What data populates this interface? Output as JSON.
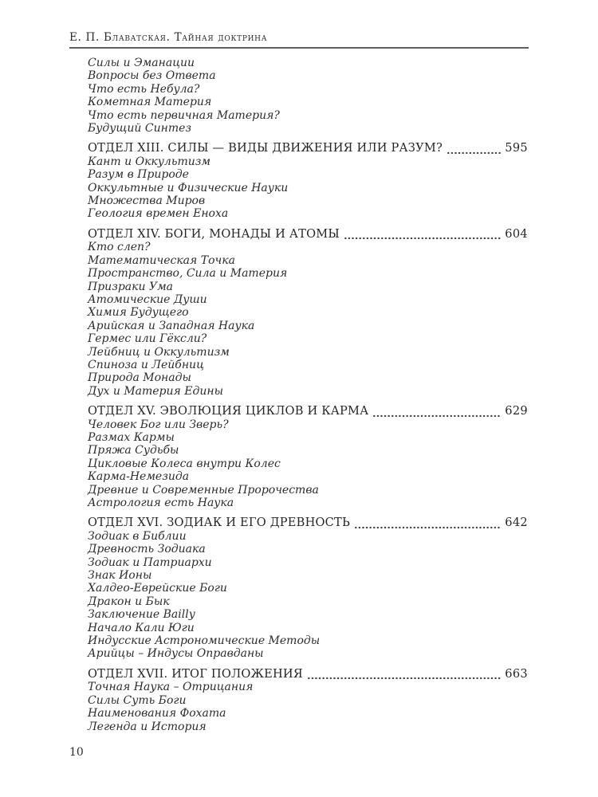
{
  "page": {
    "running_header": "Е. П. Блаватская. Тайная доктрина",
    "folio": "10"
  },
  "toc": {
    "leading_items": [
      "Силы и Эманации",
      "Вопросы без Ответа",
      "Что есть Небула?",
      "Кометная Материя",
      "Что есть первичная Материя?",
      "Будущий Синтез"
    ],
    "sections": [
      {
        "title": "ОТДЕЛ XIII. СИЛЫ — ВИДЫ ДВИЖЕНИЯ ИЛИ РАЗУМ?",
        "page": "595",
        "items": [
          "Кант и Оккультизм",
          "Разум в Природе",
          "Оккультные и Физические Науки",
          "Множества Миров",
          "Геология времен Еноха"
        ]
      },
      {
        "title": "ОТДЕЛ XIV. БОГИ, МОНАДЫ И АТОМЫ",
        "page": "604",
        "items": [
          "Кто слеп?",
          "Математическая Точка",
          "Пространство, Сила и Материя",
          "Призраки Ума",
          "Атомические Души",
          "Химия Будущего",
          "Арийская и Западная Наука",
          "Гермес или Гёксли?",
          "Лейбниц и Оккультизм",
          "Спиноза и Лейбниц",
          "Природа Монады",
          "Дух и Материя Едины"
        ]
      },
      {
        "title": "ОТДЕЛ XV. ЭВОЛЮЦИЯ ЦИКЛОВ И КАРМА",
        "page": "629",
        "items": [
          "Человек Бог или Зверь?",
          "Размах Кармы",
          "Пряжа Судьбы",
          "Цикловые Колеса внутри Колес",
          "Карма-Немезида",
          "Древние и Современные Пророчества",
          "Астрология есть Наука"
        ]
      },
      {
        "title": "ОТДЕЛ XVI. ЗОДИАК И ЕГО ДРЕВНОСТЬ",
        "page": "642",
        "items": [
          "Зодиак в Библии",
          "Древность Зодиака",
          "Зодиак и Патриархи",
          "Знак Ионы",
          "Халдео-Еврейские Боги",
          "Дракон и Бык",
          "Заключение Bailly",
          "Начало Кали Юги",
          "Индусские Астрономические Методы",
          "Арийцы – Индусы Оправданы"
        ]
      },
      {
        "title": "ОТДЕЛ XVII. ИТОГ ПОЛОЖЕНИЯ",
        "page": "663",
        "items": [
          "Точная Наука – Отрицания",
          "Силы Суть Боги",
          "Наименования Фохата",
          "Легенда и История"
        ]
      }
    ]
  }
}
